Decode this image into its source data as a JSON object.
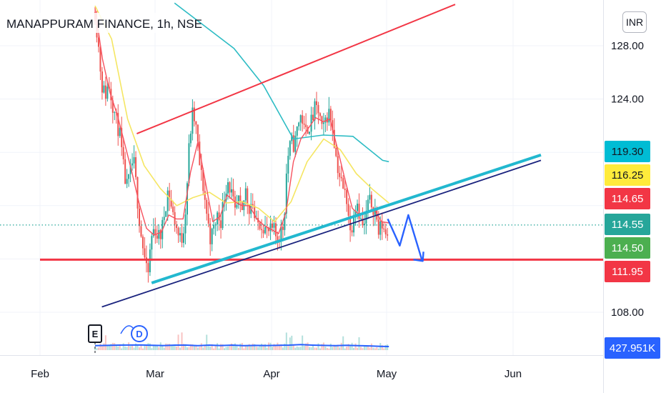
{
  "header": {
    "title": "MANAPPURAM FINANCE, 1h, NSE"
  },
  "currency_button": {
    "label": "INR"
  },
  "colors": {
    "up": "#26a69a",
    "down": "#ef5350",
    "channel": "#f23645",
    "support": "#f23645",
    "trend_dark": "#1a237e",
    "trend_cyan": "#22b8cf",
    "ma_fast": "#f7525f",
    "ma_mid": "#f5e663",
    "ma_slow": "#2dbcc4",
    "volume_ma": "#2962ff",
    "projection": "#2962ff"
  },
  "chart_data": {
    "type": "candlestick",
    "symbol": "MANAPPURAM FINANCE",
    "interval": "1h",
    "exchange": "NSE",
    "currency": "INR",
    "x_ticks": [
      "Feb",
      "Mar",
      "Apr",
      "May",
      "Jun"
    ],
    "y_ticks": [
      "128.00",
      "124.00",
      "108.00"
    ],
    "ylim": [
      105.2,
      131.2
    ],
    "grid": true,
    "price_labels": [
      {
        "value": "119.30",
        "bg": "#00bcd4",
        "fg": "#131722"
      },
      {
        "value": "116.25",
        "bg": "#ffeb3b",
        "fg": "#131722"
      },
      {
        "value": "114.65",
        "bg": "#f23645",
        "fg": "#ffffff"
      },
      {
        "value": "114.55",
        "bg": "#26a69a",
        "fg": "#ffffff"
      },
      {
        "value": "114.50",
        "bg": "#4caf50",
        "fg": "#ffffff"
      },
      {
        "value": "111.95",
        "bg": "#f23645",
        "fg": "#ffffff"
      },
      {
        "value": "427.951K",
        "bg": "#2962ff",
        "fg": "#ffffff"
      }
    ],
    "last_price": 114.55,
    "support_level": 111.95,
    "events": [
      {
        "label": "E",
        "kind": "earnings",
        "date": "Feb 16"
      },
      {
        "label": "D",
        "kind": "dividend",
        "date": "Feb 20"
      }
    ],
    "path_points": [
      [
        0.0,
        130.5
      ],
      [
        0.6,
        128.0
      ],
      [
        1.2,
        125.0
      ],
      [
        1.8,
        124.3
      ],
      [
        2.4,
        125.2
      ],
      [
        3.1,
        123.6
      ],
      [
        3.7,
        122.4
      ],
      [
        4.3,
        121.4
      ],
      [
        4.9,
        119.0
      ],
      [
        5.5,
        117.3
      ],
      [
        6.1,
        118.2
      ],
      [
        6.7,
        119.6
      ],
      [
        7.3,
        117.0
      ],
      [
        7.9,
        114.3
      ],
      [
        8.6,
        112.3
      ],
      [
        9.2,
        110.4
      ],
      [
        9.8,
        113.5
      ],
      [
        10.4,
        114.4
      ],
      [
        11.0,
        113.6
      ],
      [
        11.6,
        113.9
      ],
      [
        12.2,
        115.7
      ],
      [
        12.8,
        117.3
      ],
      [
        13.5,
        115.5
      ],
      [
        14.1,
        114.7
      ],
      [
        14.7,
        113.5
      ],
      [
        15.3,
        113.6
      ],
      [
        15.9,
        116.1
      ],
      [
        16.5,
        120.8
      ],
      [
        17.1,
        123.0
      ],
      [
        17.7,
        121.7
      ],
      [
        18.3,
        119.0
      ],
      [
        19.0,
        117.2
      ],
      [
        19.6,
        115.2
      ],
      [
        20.2,
        113.5
      ],
      [
        20.8,
        114.3
      ],
      [
        21.4,
        115.3
      ],
      [
        22.0,
        114.9
      ],
      [
        22.6,
        116.7
      ],
      [
        23.2,
        118.0
      ],
      [
        23.9,
        116.8
      ],
      [
        24.5,
        115.3
      ],
      [
        25.1,
        116.3
      ],
      [
        25.7,
        115.2
      ],
      [
        26.3,
        117.3
      ],
      [
        26.9,
        115.8
      ],
      [
        27.5,
        116.5
      ],
      [
        28.1,
        114.4
      ],
      [
        28.7,
        114.8
      ],
      [
        29.4,
        114.6
      ],
      [
        30.0,
        114.0
      ],
      [
        30.6,
        114.0
      ],
      [
        31.2,
        114.2
      ],
      [
        31.8,
        113.5
      ],
      [
        32.4,
        114.0
      ],
      [
        33.0,
        114.5
      ],
      [
        33.6,
        119.4
      ],
      [
        34.3,
        120.8
      ],
      [
        34.9,
        120.5
      ],
      [
        35.5,
        122.2
      ],
      [
        36.1,
        122.9
      ],
      [
        36.7,
        121.3
      ],
      [
        37.3,
        122.0
      ],
      [
        37.9,
        122.3
      ],
      [
        38.5,
        123.3
      ],
      [
        39.2,
        123.0
      ],
      [
        39.8,
        121.3
      ],
      [
        40.4,
        122.7
      ],
      [
        41.0,
        123.0
      ],
      [
        41.6,
        121.9
      ],
      [
        42.2,
        119.5
      ],
      [
        42.8,
        118.2
      ],
      [
        43.4,
        117.2
      ],
      [
        44.1,
        116.5
      ],
      [
        44.7,
        113.7
      ],
      [
        45.3,
        115.9
      ],
      [
        45.9,
        116.3
      ],
      [
        46.5,
        114.8
      ],
      [
        47.1,
        114.3
      ],
      [
        47.7,
        116.2
      ],
      [
        48.3,
        116.2
      ],
      [
        49.0,
        115.7
      ],
      [
        49.6,
        114.0
      ],
      [
        50.2,
        114.6
      ],
      [
        50.8,
        114.0
      ],
      [
        51.4,
        113.8
      ]
    ],
    "ma_fast_points": [
      [
        0.0,
        130.8
      ],
      [
        1.3,
        127.0
      ],
      [
        2.6,
        124.5
      ],
      [
        3.9,
        122.8
      ],
      [
        5.1,
        120.8
      ],
      [
        6.4,
        118.6
      ],
      [
        7.7,
        116.2
      ],
      [
        9.0,
        114.3
      ],
      [
        10.3,
        113.8
      ],
      [
        11.6,
        114.0
      ],
      [
        12.9,
        115.3
      ],
      [
        14.2,
        115.0
      ],
      [
        15.4,
        115.0
      ],
      [
        16.7,
        118.5
      ],
      [
        18.0,
        120.8
      ],
      [
        19.3,
        117.8
      ],
      [
        20.6,
        114.8
      ],
      [
        21.9,
        115.2
      ],
      [
        23.1,
        116.8
      ],
      [
        24.4,
        116.3
      ],
      [
        25.7,
        116.0
      ],
      [
        27.0,
        116.0
      ],
      [
        28.3,
        115.0
      ],
      [
        29.6,
        114.5
      ],
      [
        30.9,
        114.2
      ],
      [
        32.1,
        113.9
      ],
      [
        33.4,
        115.5
      ],
      [
        34.7,
        119.3
      ],
      [
        36.0,
        121.0
      ],
      [
        37.3,
        121.8
      ],
      [
        38.6,
        122.6
      ],
      [
        39.9,
        122.3
      ],
      [
        41.1,
        122.5
      ],
      [
        42.4,
        120.3
      ],
      [
        43.7,
        118.0
      ],
      [
        45.0,
        115.8
      ],
      [
        46.3,
        115.3
      ],
      [
        47.6,
        115.5
      ],
      [
        48.9,
        115.7
      ],
      [
        50.1,
        114.8
      ],
      [
        51.4,
        114.7
      ]
    ],
    "ma_mid_points": [
      [
        0.0,
        131.0
      ],
      [
        2.9,
        128.5
      ],
      [
        5.7,
        122.5
      ],
      [
        8.6,
        119.0
      ],
      [
        11.4,
        117.3
      ],
      [
        14.3,
        116.0
      ],
      [
        17.1,
        116.6
      ],
      [
        20.0,
        117.0
      ],
      [
        22.9,
        116.2
      ],
      [
        25.7,
        116.3
      ],
      [
        28.6,
        115.8
      ],
      [
        31.4,
        114.8
      ],
      [
        34.3,
        116.3
      ],
      [
        37.1,
        119.3
      ],
      [
        40.0,
        121.0
      ],
      [
        42.9,
        120.2
      ],
      [
        45.7,
        118.4
      ],
      [
        48.6,
        117.2
      ],
      [
        51.4,
        116.2
      ]
    ],
    "ma_slow_points": [
      [
        13.9,
        131.2
      ],
      [
        19.1,
        129.5
      ],
      [
        24.3,
        127.8
      ],
      [
        29.5,
        125.0
      ],
      [
        34.7,
        121.0
      ],
      [
        39.9,
        121.3
      ],
      [
        45.1,
        121.2
      ],
      [
        50.3,
        119.4
      ],
      [
        51.4,
        119.3
      ]
    ],
    "drawings": {
      "channel_top": [
        [
          7.3,
          121.4
        ],
        [
          63.0,
          131.1
        ]
      ],
      "trend_dark": [
        [
          1.2,
          108.4
        ],
        [
          78.0,
          119.4
        ]
      ],
      "trend_cyan": [
        [
          9.9,
          110.2
        ],
        [
          78.0,
          119.8
        ]
      ],
      "projection": [
        [
          51.2,
          115.0
        ],
        [
          53.3,
          113.0
        ],
        [
          54.8,
          115.3
        ],
        [
          57.2,
          111.9
        ]
      ]
    },
    "volume_ma_points": [
      [
        0,
        0.45
      ],
      [
        4,
        0.5
      ],
      [
        8,
        0.52
      ],
      [
        10,
        0.48
      ],
      [
        12,
        0.46
      ],
      [
        14,
        0.5
      ],
      [
        16,
        0.5
      ],
      [
        18,
        0.45
      ],
      [
        20,
        0.5
      ],
      [
        22,
        0.46
      ],
      [
        24,
        0.5
      ],
      [
        26,
        0.45
      ],
      [
        28,
        0.47
      ],
      [
        30,
        0.46
      ],
      [
        32,
        0.48
      ],
      [
        34,
        0.5
      ],
      [
        36,
        0.55
      ],
      [
        38,
        0.5
      ],
      [
        40,
        0.47
      ],
      [
        42,
        0.45
      ],
      [
        44,
        0.48
      ],
      [
        46,
        0.45
      ],
      [
        48,
        0.42
      ],
      [
        50,
        0.38
      ],
      [
        51.4,
        0.36
      ]
    ]
  }
}
